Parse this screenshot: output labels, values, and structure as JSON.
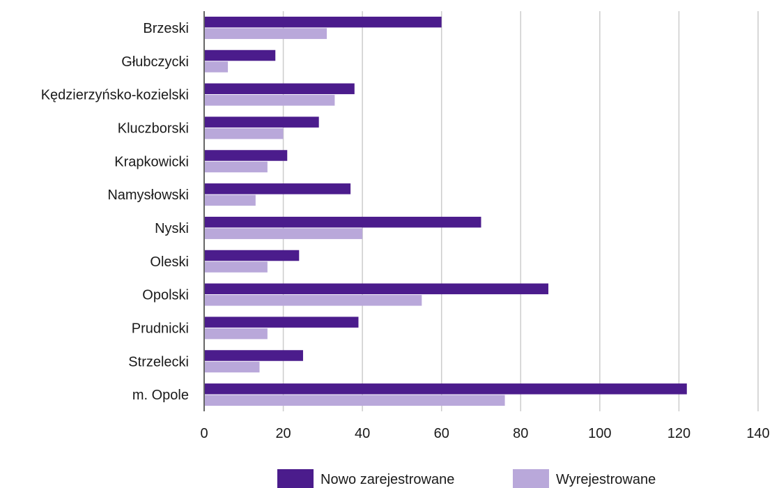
{
  "chart_data": {
    "type": "bar",
    "orientation": "horizontal",
    "categories": [
      "Brzeski",
      "Głubczycki",
      "Kędzierzyńsko-kozielski",
      "Kluczborski",
      "Krapkowicki",
      "Namysłowski",
      "Nyski",
      "Oleski",
      "Opolski",
      "Prudnicki",
      "Strzelecki",
      "m. Opole"
    ],
    "series": [
      {
        "name": "Nowo zarejestrowane",
        "color": "#4b1c8c",
        "values": [
          60,
          18,
          38,
          29,
          21,
          37,
          70,
          24,
          87,
          39,
          25,
          122
        ]
      },
      {
        "name": "Wyrejestrowane",
        "color": "#b9a8da",
        "values": [
          31,
          6,
          33,
          20,
          16,
          13,
          40,
          16,
          55,
          16,
          14,
          76
        ]
      }
    ],
    "xlim": [
      0,
      140
    ],
    "xticks": [
      "0",
      "20",
      "40",
      "60",
      "80",
      "100",
      "120",
      "140"
    ],
    "grid": true,
    "legend_position": "bottom"
  }
}
